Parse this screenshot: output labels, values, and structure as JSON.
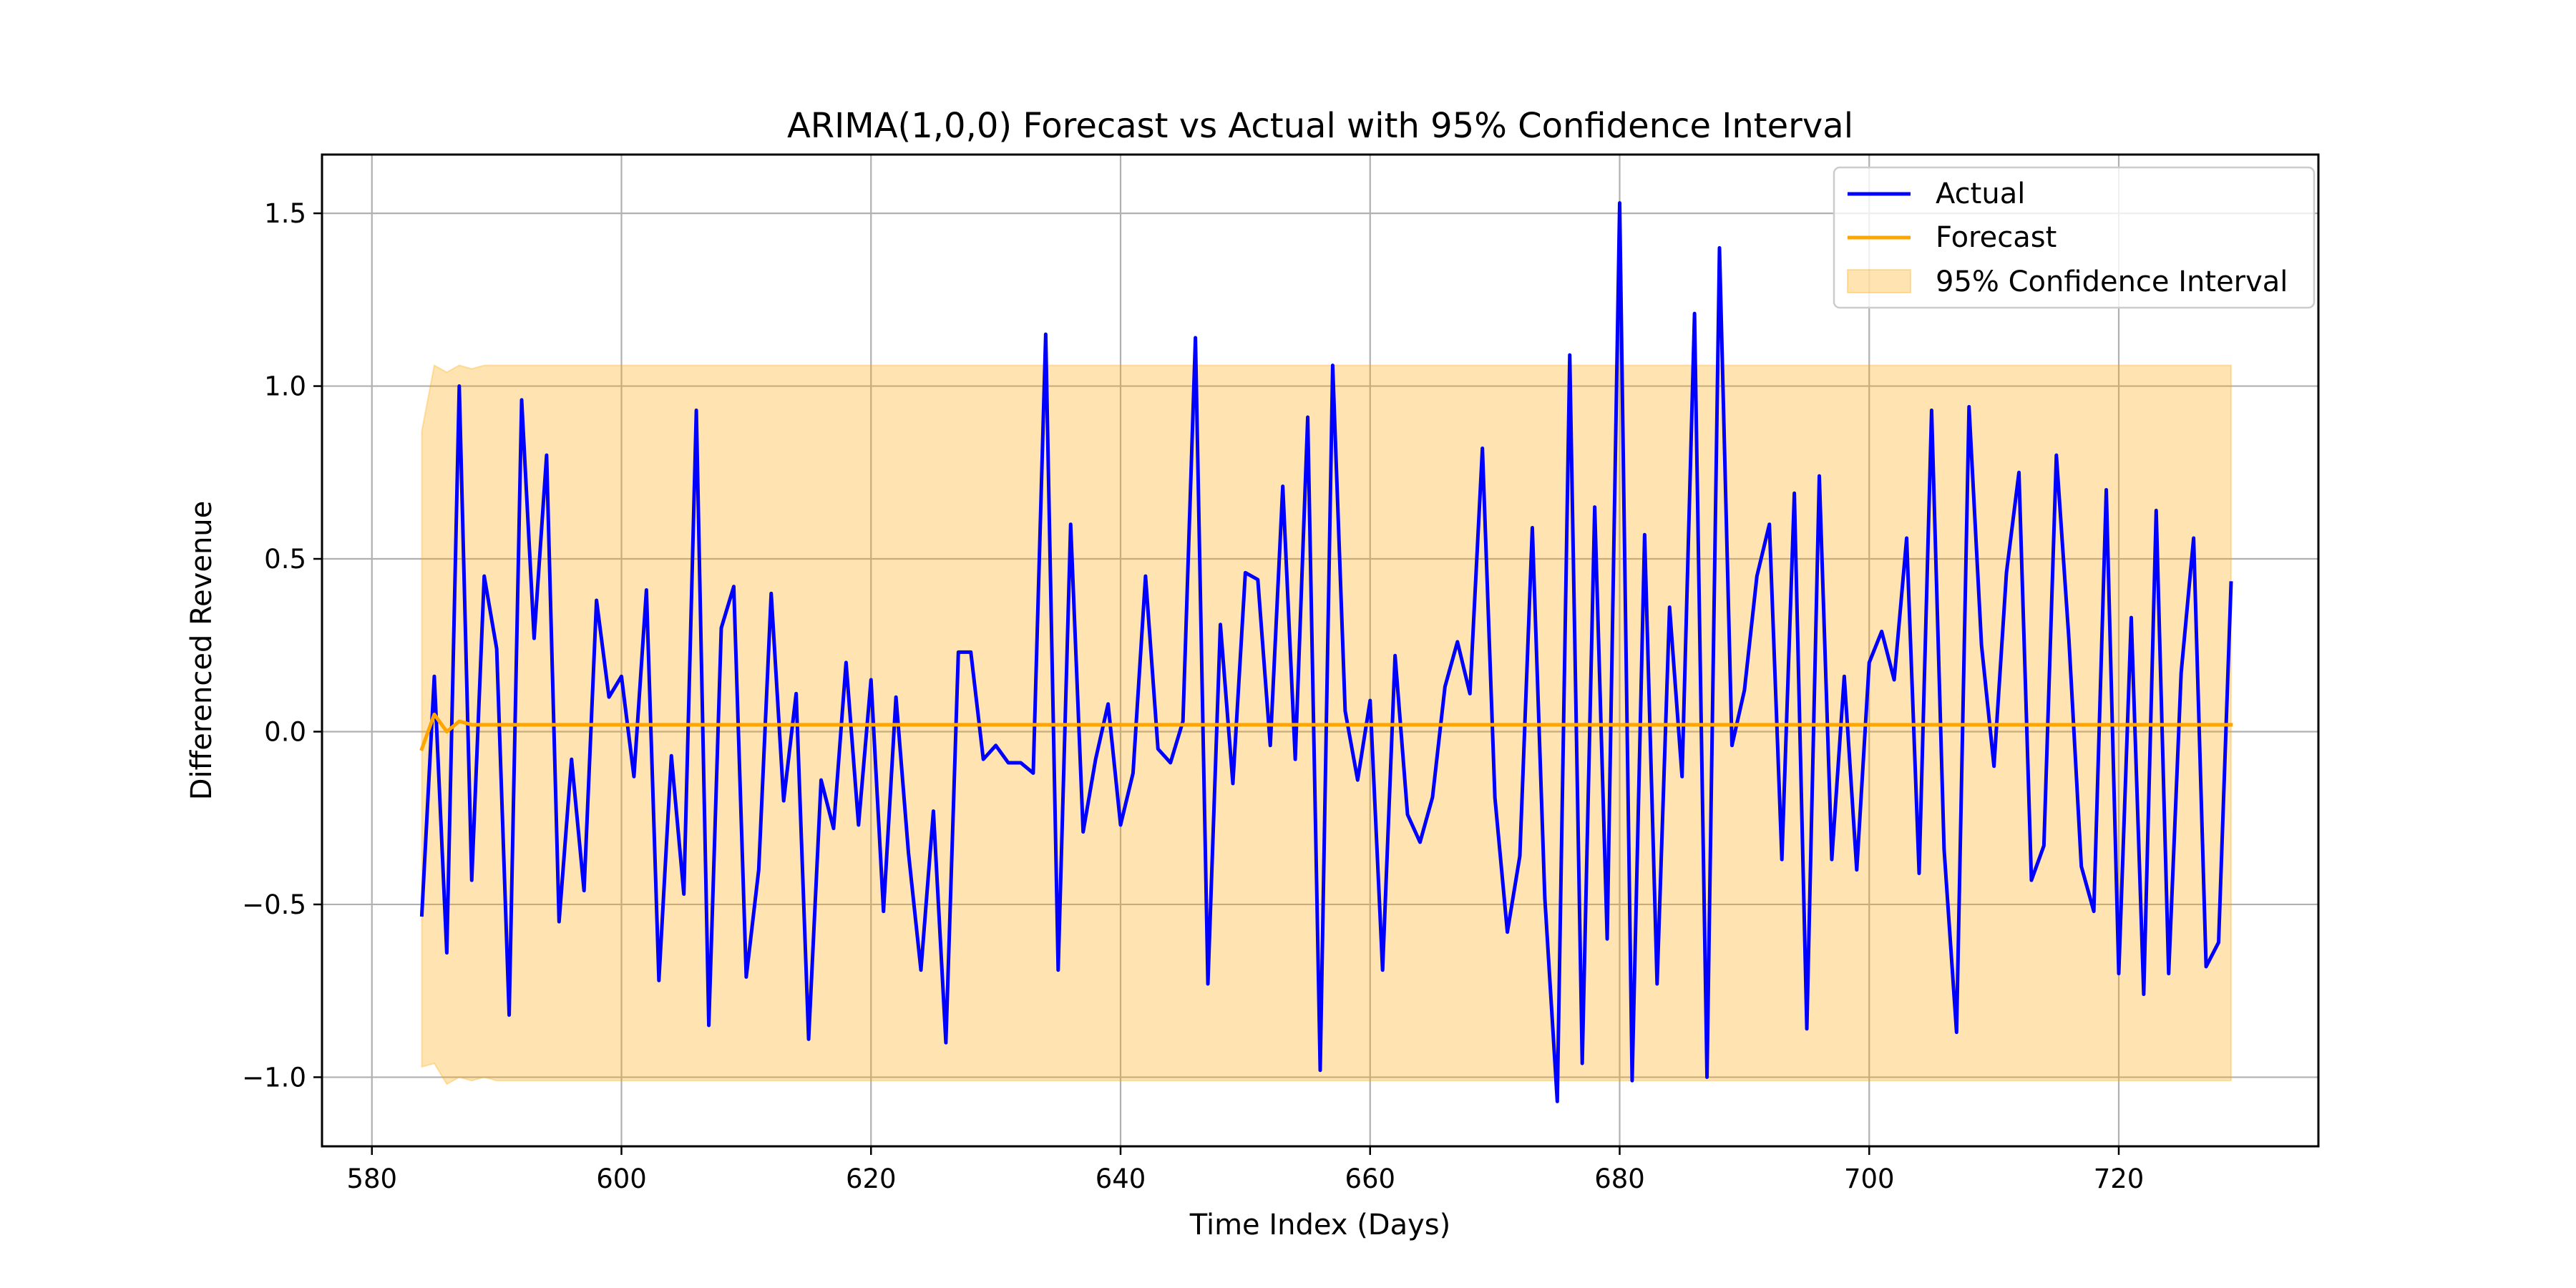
{
  "chart_data": {
    "type": "line",
    "title": "ARIMA(1,0,0) Forecast vs Actual with 95% Confidence Interval",
    "xlabel": "Time Index (Days)",
    "ylabel": "Differenced Revenue",
    "xlim": [
      576,
      736
    ],
    "ylim": [
      -1.2,
      1.67
    ],
    "xticks": [
      580,
      600,
      620,
      640,
      660,
      680,
      700,
      720
    ],
    "xtick_labels": [
      "580",
      "600",
      "620",
      "640",
      "660",
      "680",
      "700",
      "720"
    ],
    "yticks": [
      -1.0,
      -0.5,
      0.0,
      0.5,
      1.0,
      1.5
    ],
    "ytick_labels": [
      "−1.0",
      "−0.5",
      "0.0",
      "0.5",
      "1.0",
      "1.5"
    ],
    "grid": true,
    "legend": {
      "position": "top-right",
      "entries": [
        "Actual",
        "Forecast",
        "95% Confidence Interval"
      ]
    },
    "x_start": 584,
    "series": [
      {
        "name": "Actual",
        "color": "#0000ff",
        "values": [
          -0.53,
          0.16,
          -0.64,
          1.0,
          -0.43,
          0.45,
          0.24,
          -0.82,
          0.96,
          0.27,
          0.8,
          -0.55,
          -0.08,
          -0.46,
          0.38,
          0.1,
          0.16,
          -0.13,
          0.41,
          -0.72,
          -0.07,
          -0.47,
          0.93,
          -0.85,
          0.3,
          0.42,
          -0.71,
          -0.4,
          0.4,
          -0.2,
          0.11,
          -0.89,
          -0.14,
          -0.28,
          0.2,
          -0.27,
          0.15,
          -0.52,
          0.1,
          -0.35,
          -0.69,
          -0.23,
          -0.9,
          0.23,
          0.23,
          -0.08,
          -0.04,
          -0.09,
          -0.09,
          -0.12,
          1.15,
          -0.69,
          0.6,
          -0.29,
          -0.08,
          0.08,
          -0.27,
          -0.12,
          0.45,
          -0.05,
          -0.09,
          0.03,
          1.14,
          -0.73,
          0.31,
          -0.15,
          0.46,
          0.44,
          -0.04,
          0.71,
          -0.08,
          0.91,
          -0.98,
          1.06,
          0.06,
          -0.14,
          0.09,
          -0.69,
          0.22,
          -0.24,
          -0.32,
          -0.19,
          0.13,
          0.26,
          0.11,
          0.82,
          -0.19,
          -0.58,
          -0.36,
          0.59,
          -0.48,
          -1.07,
          1.09,
          -0.96,
          0.65,
          -0.6,
          1.53,
          -1.01,
          0.57,
          -0.73,
          0.36,
          -0.13,
          1.21,
          -1.0,
          1.4,
          -0.04,
          0.12,
          0.45,
          0.6,
          -0.37,
          0.69,
          -0.86,
          0.74,
          -0.37,
          0.16,
          -0.4,
          0.2,
          0.29,
          0.15,
          0.56,
          -0.41,
          0.93,
          -0.34,
          -0.87,
          0.94,
          0.25,
          -0.1,
          0.46,
          0.75,
          -0.43,
          -0.33,
          0.8,
          0.27,
          -0.39,
          -0.52,
          0.7,
          -0.7,
          0.33,
          -0.76,
          0.64,
          -0.7,
          0.17,
          0.56,
          -0.68,
          -0.61,
          0.43
        ]
      },
      {
        "name": "Forecast",
        "color": "#ffa500",
        "values": [
          -0.05,
          0.05,
          0.0,
          0.03,
          0.02,
          0.02,
          0.02,
          0.02,
          0.02,
          0.02,
          0.02,
          0.02,
          0.02,
          0.02,
          0.02,
          0.02,
          0.02,
          0.02,
          0.02,
          0.02,
          0.02,
          0.02,
          0.02,
          0.02,
          0.02,
          0.02,
          0.02,
          0.02,
          0.02,
          0.02,
          0.02,
          0.02,
          0.02,
          0.02,
          0.02,
          0.02,
          0.02,
          0.02,
          0.02,
          0.02,
          0.02,
          0.02,
          0.02,
          0.02,
          0.02,
          0.02,
          0.02,
          0.02,
          0.02,
          0.02,
          0.02,
          0.02,
          0.02,
          0.02,
          0.02,
          0.02,
          0.02,
          0.02,
          0.02,
          0.02,
          0.02,
          0.02,
          0.02,
          0.02,
          0.02,
          0.02,
          0.02,
          0.02,
          0.02,
          0.02,
          0.02,
          0.02,
          0.02,
          0.02,
          0.02,
          0.02,
          0.02,
          0.02,
          0.02,
          0.02,
          0.02,
          0.02,
          0.02,
          0.02,
          0.02,
          0.02,
          0.02,
          0.02,
          0.02,
          0.02,
          0.02,
          0.02,
          0.02,
          0.02,
          0.02,
          0.02,
          0.02,
          0.02,
          0.02,
          0.02,
          0.02,
          0.02,
          0.02,
          0.02,
          0.02,
          0.02,
          0.02,
          0.02,
          0.02,
          0.02,
          0.02,
          0.02,
          0.02,
          0.02,
          0.02,
          0.02,
          0.02,
          0.02,
          0.02,
          0.02,
          0.02,
          0.02,
          0.02,
          0.02,
          0.02,
          0.02,
          0.02,
          0.02,
          0.02,
          0.02,
          0.02,
          0.02,
          0.02,
          0.02,
          0.02,
          0.02,
          0.02,
          0.02,
          0.02,
          0.02,
          0.02,
          0.02,
          0.02,
          0.02,
          0.02,
          0.02
        ]
      }
    ],
    "confidence_interval": {
      "name": "95% Confidence Interval",
      "color": "#ffa500",
      "opacity": 0.3,
      "upper_start": [
        0.87,
        1.06,
        1.04,
        1.06,
        1.05,
        1.06
      ],
      "lower_start": [
        -0.97,
        -0.96,
        -1.02,
        -1.0,
        -1.01,
        -1.0
      ],
      "upper_steady": 1.06,
      "lower_steady": -1.01
    }
  }
}
